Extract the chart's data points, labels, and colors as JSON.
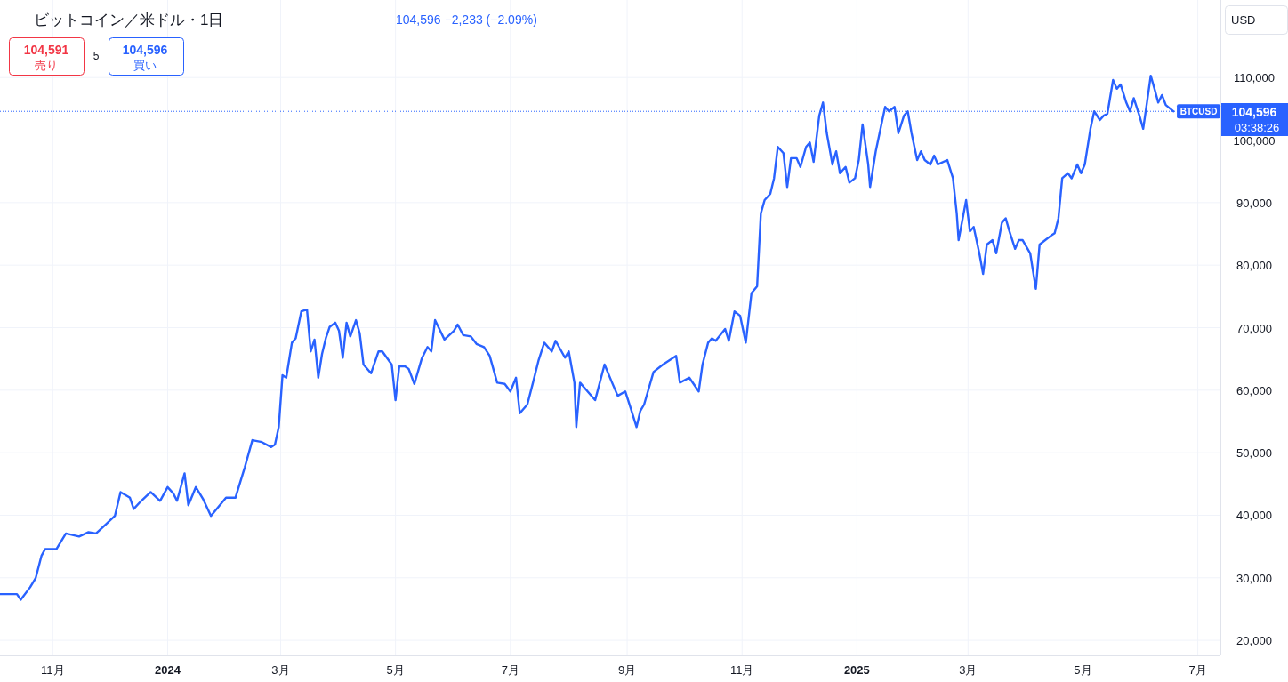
{
  "chart_data": {
    "type": "line",
    "title": "ビットコイン／米ドル・1日",
    "x": [
      "2023-10-04",
      "2023-10-13",
      "2023-10-15",
      "2023-10-20",
      "2023-10-23",
      "2023-10-26",
      "2023-10-28",
      "2023-11-03",
      "2023-11-08",
      "2023-11-15",
      "2023-11-20",
      "2023-11-24",
      "2023-11-29",
      "2023-12-04",
      "2023-12-07",
      "2023-12-12",
      "2023-12-14",
      "2023-12-18",
      "2023-12-23",
      "2023-12-28",
      "2024-01-01",
      "2024-01-04",
      "2024-01-06",
      "2024-01-10",
      "2024-01-12",
      "2024-01-16",
      "2024-01-20",
      "2024-01-24",
      "2024-02-01",
      "2024-02-06",
      "2024-02-11",
      "2024-02-15",
      "2024-02-20",
      "2024-02-25",
      "2024-02-27",
      "2024-02-29",
      "2024-03-02",
      "2024-03-04",
      "2024-03-07",
      "2024-03-09",
      "2024-03-12",
      "2024-03-15",
      "2024-03-17",
      "2024-03-19",
      "2024-03-21",
      "2024-03-23",
      "2024-03-25",
      "2024-03-27",
      "2024-03-30",
      "2024-04-01",
      "2024-04-03",
      "2024-04-05",
      "2024-04-07",
      "2024-04-10",
      "2024-04-12",
      "2024-04-14",
      "2024-04-18",
      "2024-04-22",
      "2024-04-24",
      "2024-04-29",
      "2024-05-01",
      "2024-05-03",
      "2024-05-06",
      "2024-05-08",
      "2024-05-11",
      "2024-05-15",
      "2024-05-18",
      "2024-05-20",
      "2024-05-22",
      "2024-05-27",
      "2024-06-01",
      "2024-06-03",
      "2024-06-06",
      "2024-06-10",
      "2024-06-13",
      "2024-06-17",
      "2024-06-20",
      "2024-06-24",
      "2024-06-28",
      "2024-07-01",
      "2024-07-04",
      "2024-07-06",
      "2024-07-10",
      "2024-07-13",
      "2024-07-16",
      "2024-07-19",
      "2024-07-23",
      "2024-07-25",
      "2024-07-30",
      "2024-08-01",
      "2024-08-04",
      "2024-08-05",
      "2024-08-07",
      "2024-08-11",
      "2024-08-15",
      "2024-08-20",
      "2024-08-24",
      "2024-08-27",
      "2024-08-31",
      "2024-09-03",
      "2024-09-06",
      "2024-09-08",
      "2024-09-10",
      "2024-09-15",
      "2024-09-20",
      "2024-09-27",
      "2024-09-29",
      "2024-10-04",
      "2024-10-09",
      "2024-10-11",
      "2024-10-14",
      "2024-10-16",
      "2024-10-18",
      "2024-10-23",
      "2024-10-25",
      "2024-10-28",
      "2024-10-31",
      "2024-11-03",
      "2024-11-06",
      "2024-11-09",
      "2024-11-11",
      "2024-11-13",
      "2024-11-16",
      "2024-11-18",
      "2024-11-20",
      "2024-11-23",
      "2024-11-25",
      "2024-11-27",
      "2024-11-30",
      "2024-12-02",
      "2024-12-05",
      "2024-12-07",
      "2024-12-09",
      "2024-12-12",
      "2024-12-14",
      "2024-12-16",
      "2024-12-19",
      "2024-12-21",
      "2024-12-23",
      "2024-12-26",
      "2024-12-28",
      "2024-12-31",
      "2025-01-02",
      "2025-01-04",
      "2025-01-07",
      "2025-01-08",
      "2025-01-11",
      "2025-01-14",
      "2025-01-16",
      "2025-01-18",
      "2025-01-21",
      "2025-01-23",
      "2025-01-26",
      "2025-01-28",
      "2025-01-30",
      "2025-02-02",
      "2025-02-04",
      "2025-02-06",
      "2025-02-09",
      "2025-02-11",
      "2025-02-13",
      "2025-02-18",
      "2025-02-21",
      "2025-02-23",
      "2025-02-24",
      "2025-02-28",
      "2025-03-02",
      "2025-03-04",
      "2025-03-07",
      "2025-03-09",
      "2025-03-11",
      "2025-03-14",
      "2025-03-16",
      "2025-03-19",
      "2025-03-21",
      "2025-03-23",
      "2025-03-26",
      "2025-03-28",
      "2025-03-30",
      "2025-04-03",
      "2025-04-06",
      "2025-04-08",
      "2025-04-11",
      "2025-04-14",
      "2025-04-16",
      "2025-04-18",
      "2025-04-20",
      "2025-04-23",
      "2025-04-25",
      "2025-04-28",
      "2025-04-30",
      "2025-05-02",
      "2025-05-05",
      "2025-05-07",
      "2025-05-10",
      "2025-05-12",
      "2025-05-14",
      "2025-05-17",
      "2025-05-19",
      "2025-05-21",
      "2025-05-24",
      "2025-05-26",
      "2025-05-28",
      "2025-05-31",
      "2025-06-02",
      "2025-06-04",
      "2025-06-06",
      "2025-06-08",
      "2025-06-10",
      "2025-06-12",
      "2025-06-14",
      "2025-06-18"
    ],
    "series": [
      {
        "name": "BTCUSD",
        "color": "#2962ff",
        "values": [
          27400,
          27400,
          26500,
          28500,
          30000,
          33500,
          34600,
          34600,
          37100,
          36600,
          37300,
          37100,
          38500,
          39900,
          43700,
          42800,
          41000,
          42300,
          43700,
          42300,
          44500,
          43500,
          42300,
          46700,
          41600,
          44500,
          42500,
          39900,
          42800,
          42800,
          47700,
          52000,
          51700,
          50900,
          51300,
          54100,
          62400,
          62000,
          67600,
          68300,
          72600,
          72900,
          66200,
          68100,
          62000,
          65800,
          68300,
          70100,
          70800,
          69500,
          65200,
          70800,
          68600,
          71200,
          69100,
          64100,
          62700,
          66200,
          66200,
          64100,
          58400,
          63800,
          63800,
          63400,
          61000,
          65100,
          66900,
          66200,
          71200,
          68100,
          69500,
          70500,
          68800,
          68600,
          67400,
          66900,
          65500,
          61200,
          61000,
          59800,
          62000,
          56300,
          57700,
          61200,
          64800,
          67600,
          66200,
          67900,
          65200,
          66200,
          61200,
          54100,
          61200,
          59800,
          58400,
          64100,
          61200,
          59100,
          59800,
          57000,
          54100,
          56700,
          57700,
          62900,
          64100,
          65500,
          61200,
          62000,
          59800,
          64100,
          67600,
          68300,
          67900,
          69800,
          67900,
          72600,
          71900,
          67600,
          75500,
          76600,
          88300,
          90400,
          91400,
          93900,
          98900,
          97900,
          92500,
          97100,
          97100,
          95700,
          98900,
          99600,
          96500,
          103900,
          106000,
          101100,
          96100,
          98200,
          94700,
          95700,
          93200,
          93900,
          96800,
          102500,
          96100,
          92500,
          98200,
          102500,
          105300,
          104600,
          105300,
          101100,
          103900,
          104600,
          101100,
          96800,
          98200,
          96800,
          96100,
          97500,
          96100,
          96800,
          93900,
          88300,
          84000,
          90400,
          85400,
          86100,
          81900,
          78600,
          83300,
          84000,
          81900,
          86800,
          87500,
          85400,
          82600,
          84000,
          84000,
          81900,
          76200,
          83300,
          84000,
          84700,
          85100,
          87500,
          93900,
          94700,
          93900,
          96100,
          94700,
          96100,
          101800,
          104600,
          103200,
          103900,
          104200,
          109600,
          108200,
          108900,
          106000,
          104600,
          106700,
          103900,
          101800,
          106000,
          110300,
          108200,
          106000,
          107200,
          105600,
          104600
        ]
      }
    ],
    "xlim": [
      "2023-10-04",
      "2025-07-13"
    ],
    "xticks": [
      {
        "value": "2023-11-01",
        "label": "11月"
      },
      {
        "value": "2024-01-01",
        "label": "2024"
      },
      {
        "value": "2024-03-01",
        "label": "3月"
      },
      {
        "value": "2024-05-01",
        "label": "5月"
      },
      {
        "value": "2024-07-01",
        "label": "7月"
      },
      {
        "value": "2024-09-01",
        "label": "9月"
      },
      {
        "value": "2024-11-01",
        "label": "11月"
      },
      {
        "value": "2025-01-01",
        "label": "2025"
      },
      {
        "value": "2025-03-01",
        "label": "3月"
      },
      {
        "value": "2025-05-01",
        "label": "5月"
      },
      {
        "value": "2025-07-01",
        "label": "7月"
      }
    ],
    "ylim": [
      17600,
      122400
    ],
    "yticks": [
      {
        "value": 20000,
        "label": "20,000"
      },
      {
        "value": 30000,
        "label": "30,000"
      },
      {
        "value": 40000,
        "label": "40,000"
      },
      {
        "value": 50000,
        "label": "50,000"
      },
      {
        "value": 60000,
        "label": "60,000"
      },
      {
        "value": 70000,
        "label": "70,000"
      },
      {
        "value": 80000,
        "label": "80,000"
      },
      {
        "value": 90000,
        "label": "90,000"
      },
      {
        "value": 100000,
        "label": "100,000"
      },
      {
        "value": 110000,
        "label": "110,000"
      }
    ],
    "grid": true,
    "ref_lines": [
      {
        "axis": "y",
        "value": 104596,
        "color": "#2962ff",
        "line_style": "dotted"
      }
    ],
    "annotations": [
      "104,596 −2,233 (−2.09%)",
      "104,591",
      "売り",
      "5",
      "104,596",
      "買い",
      "USD",
      "104,596",
      "03:38:26"
    ]
  }
}
